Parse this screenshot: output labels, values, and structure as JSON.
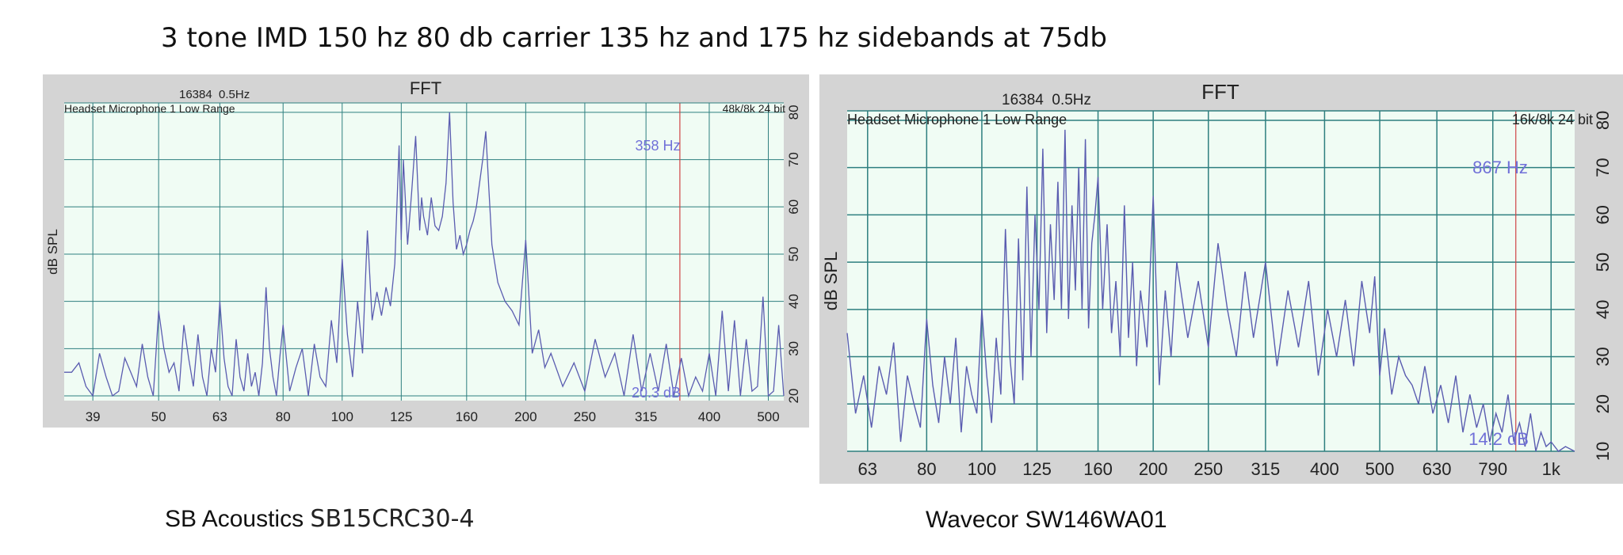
{
  "headline": "3 tone IMD 150 hz 80 db carrier 135 hz and 175 hz sidebands at 75db",
  "captions": {
    "left": {
      "brand": "SB Acoustics",
      "model": "SB15CRC30-4"
    },
    "right": {
      "brand": "Wavecor",
      "model": "SW146WA01"
    }
  },
  "colors": {
    "plot_bg": "#f0fcf4",
    "frame": "#d4d4d4",
    "grid": "#2e7f7f",
    "trace": "#5a5cb0",
    "marker": "#d04444",
    "readout": "#7070d8"
  },
  "chart_data": [
    {
      "type": "line",
      "title": "FFT",
      "fft_info": "16384  0.5Hz",
      "device": "Headset Microphone 1 Low Range",
      "format": "48k/8k 24 bit",
      "ylabel": "dB SPL",
      "xscale": "log",
      "xlim": [
        35,
        530
      ],
      "ylim": [
        19,
        82
      ],
      "x_ticks": [
        39,
        50,
        63,
        80,
        100,
        125,
        160,
        200,
        250,
        315,
        400,
        500
      ],
      "x_tick_labels": [
        "39",
        "50",
        "63",
        "80",
        "100",
        "125",
        "160",
        "200",
        "250",
        "315",
        "400",
        "500"
      ],
      "y_ticks": [
        20,
        30,
        40,
        50,
        60,
        70,
        80
      ],
      "marker_hz": 358,
      "marker_label": "358 Hz",
      "level_label": "20.3 dB",
      "grid": true,
      "series": [
        {
          "x": [
            35,
            36,
            37,
            38,
            39,
            40,
            41,
            42,
            43,
            44,
            45,
            46,
            47,
            48,
            49,
            50,
            51,
            52,
            53,
            54,
            55,
            56,
            57,
            58,
            59,
            60,
            61,
            62,
            63,
            64,
            65,
            66,
            67,
            68,
            69,
            70,
            71,
            72,
            73,
            74,
            75,
            76,
            77,
            78,
            79,
            80,
            82,
            84,
            86,
            88,
            90,
            92,
            94,
            96,
            98,
            100,
            102,
            104,
            106,
            108,
            110,
            112,
            114,
            116,
            118,
            120,
            122,
            124,
            125,
            126,
            128,
            130,
            132,
            134,
            135,
            136,
            138,
            140,
            142,
            144,
            146,
            148,
            150,
            152,
            154,
            156,
            158,
            160,
            162,
            164,
            166,
            168,
            170,
            172,
            174,
            175,
            176,
            178,
            180,
            185,
            190,
            195,
            200,
            205,
            210,
            215,
            220,
            230,
            240,
            250,
            260,
            270,
            280,
            290,
            300,
            310,
            320,
            330,
            340,
            350,
            360,
            370,
            380,
            390,
            400,
            410,
            420,
            430,
            440,
            450,
            460,
            470,
            480,
            490,
            500,
            510,
            520,
            530
          ],
          "y": [
            25,
            25,
            27,
            22,
            20,
            29,
            24,
            20,
            21,
            28,
            25,
            22,
            31,
            24,
            20,
            38,
            30,
            25,
            27,
            21,
            35,
            28,
            22,
            33,
            24,
            20,
            30,
            25,
            40,
            28,
            22,
            20,
            32,
            24,
            21,
            29,
            22,
            25,
            20,
            27,
            43,
            30,
            24,
            20,
            28,
            35,
            21,
            26,
            30,
            20,
            31,
            24,
            22,
            36,
            27,
            49,
            33,
            24,
            40,
            29,
            55,
            36,
            42,
            37,
            43,
            39,
            48,
            73,
            53,
            70,
            52,
            63,
            75,
            55,
            62,
            58,
            54,
            62,
            56,
            55,
            58,
            65,
            80,
            61,
            51,
            54,
            50,
            52,
            55,
            57,
            60,
            65,
            70,
            76,
            64,
            58,
            52,
            48,
            44,
            40,
            38,
            35,
            53,
            29,
            34,
            26,
            29,
            22,
            27,
            21,
            32,
            24,
            29,
            20,
            33,
            21,
            29,
            21,
            31,
            20,
            28,
            20,
            24,
            21,
            29,
            20,
            38,
            21,
            36,
            20,
            32,
            21,
            22,
            41,
            20,
            21,
            35,
            20
          ]
        }
      ]
    },
    {
      "type": "line",
      "title": "FFT",
      "fft_info": "16384  0.5Hz",
      "device": "Headset Microphone 1 Low Range",
      "format": "16k/8k 24 bit",
      "ylabel": "dB SPL",
      "xscale": "log",
      "xlim": [
        58,
        1100
      ],
      "ylim": [
        10,
        82
      ],
      "x_ticks": [
        63,
        80,
        100,
        125,
        160,
        200,
        250,
        315,
        400,
        500,
        630,
        790,
        1000
      ],
      "x_tick_labels": [
        "63",
        "80",
        "100",
        "125",
        "160",
        "200",
        "250",
        "315",
        "400",
        "500",
        "630",
        "790",
        "1k"
      ],
      "y_ticks": [
        10,
        20,
        30,
        40,
        50,
        60,
        70,
        80
      ],
      "marker_hz": 867,
      "marker_label": "867 Hz",
      "level_label": "14.2 dB",
      "grid": true,
      "series": [
        {
          "x": [
            58,
            60,
            62,
            64,
            66,
            68,
            70,
            72,
            74,
            76,
            78,
            80,
            82,
            84,
            86,
            88,
            90,
            92,
            94,
            96,
            98,
            100,
            102,
            104,
            106,
            108,
            110,
            112,
            114,
            116,
            118,
            120,
            122,
            124,
            126,
            128,
            130,
            132,
            134,
            136,
            138,
            140,
            142,
            144,
            146,
            148,
            150,
            152,
            154,
            156,
            158,
            160,
            163,
            166,
            169,
            172,
            175,
            178,
            181,
            184,
            187,
            190,
            195,
            200,
            205,
            210,
            215,
            220,
            230,
            240,
            250,
            260,
            270,
            280,
            290,
            300,
            315,
            330,
            345,
            360,
            375,
            390,
            405,
            420,
            435,
            450,
            465,
            480,
            490,
            500,
            510,
            525,
            540,
            555,
            570,
            585,
            600,
            620,
            640,
            660,
            680,
            700,
            720,
            740,
            760,
            780,
            800,
            820,
            840,
            860,
            880,
            900,
            920,
            940,
            960,
            980,
            1000,
            1030,
            1060,
            1100
          ],
          "y": [
            35,
            18,
            26,
            15,
            28,
            22,
            33,
            12,
            26,
            20,
            15,
            38,
            24,
            16,
            30,
            20,
            34,
            14,
            28,
            22,
            18,
            40,
            26,
            16,
            34,
            22,
            57,
            30,
            20,
            55,
            25,
            66,
            30,
            60,
            40,
            74,
            35,
            58,
            42,
            67,
            40,
            78,
            38,
            62,
            44,
            70,
            40,
            76,
            36,
            54,
            60,
            68,
            40,
            58,
            35,
            46,
            30,
            62,
            34,
            50,
            28,
            44,
            32,
            64,
            24,
            44,
            30,
            50,
            34,
            46,
            32,
            54,
            40,
            30,
            48,
            34,
            50,
            28,
            44,
            32,
            46,
            26,
            40,
            30,
            42,
            28,
            46,
            35,
            47,
            26,
            36,
            22,
            30,
            26,
            24,
            20,
            28,
            18,
            24,
            16,
            26,
            14,
            22,
            15,
            20,
            12,
            18,
            14,
            22,
            12,
            16,
            11,
            18,
            10,
            14,
            11,
            12,
            10,
            11,
            10
          ]
        }
      ]
    }
  ]
}
